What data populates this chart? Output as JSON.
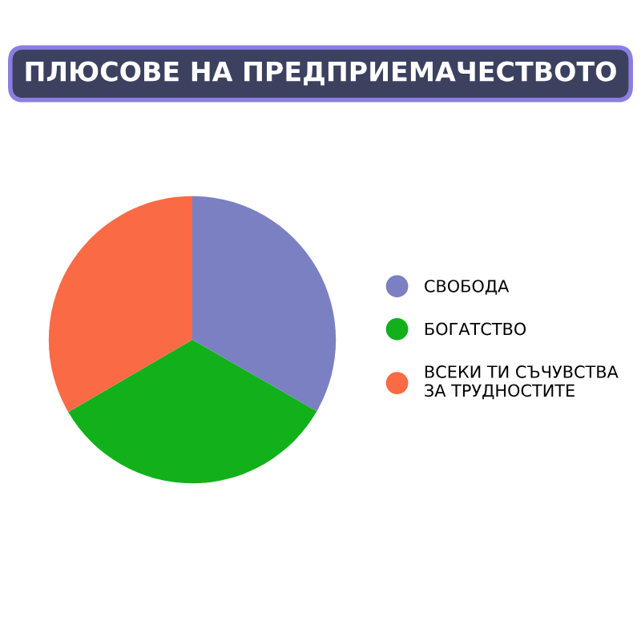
{
  "chart_data": {
    "type": "pie",
    "title": "ПЛЮСОВЕ НА ПРЕДПРИЕМАЧЕСТВОТО",
    "categories": [
      "СВОБОДА",
      "БОГАТСТВО",
      "ВСЕКИ ТИ СЪЧУВСТВА ЗА ТРУДНОСТИТЕ"
    ],
    "values": [
      33.3,
      33.3,
      33.4
    ],
    "colors": [
      "#7b80c2",
      "#12b01a",
      "#fa6a45"
    ],
    "legend": "right"
  }
}
